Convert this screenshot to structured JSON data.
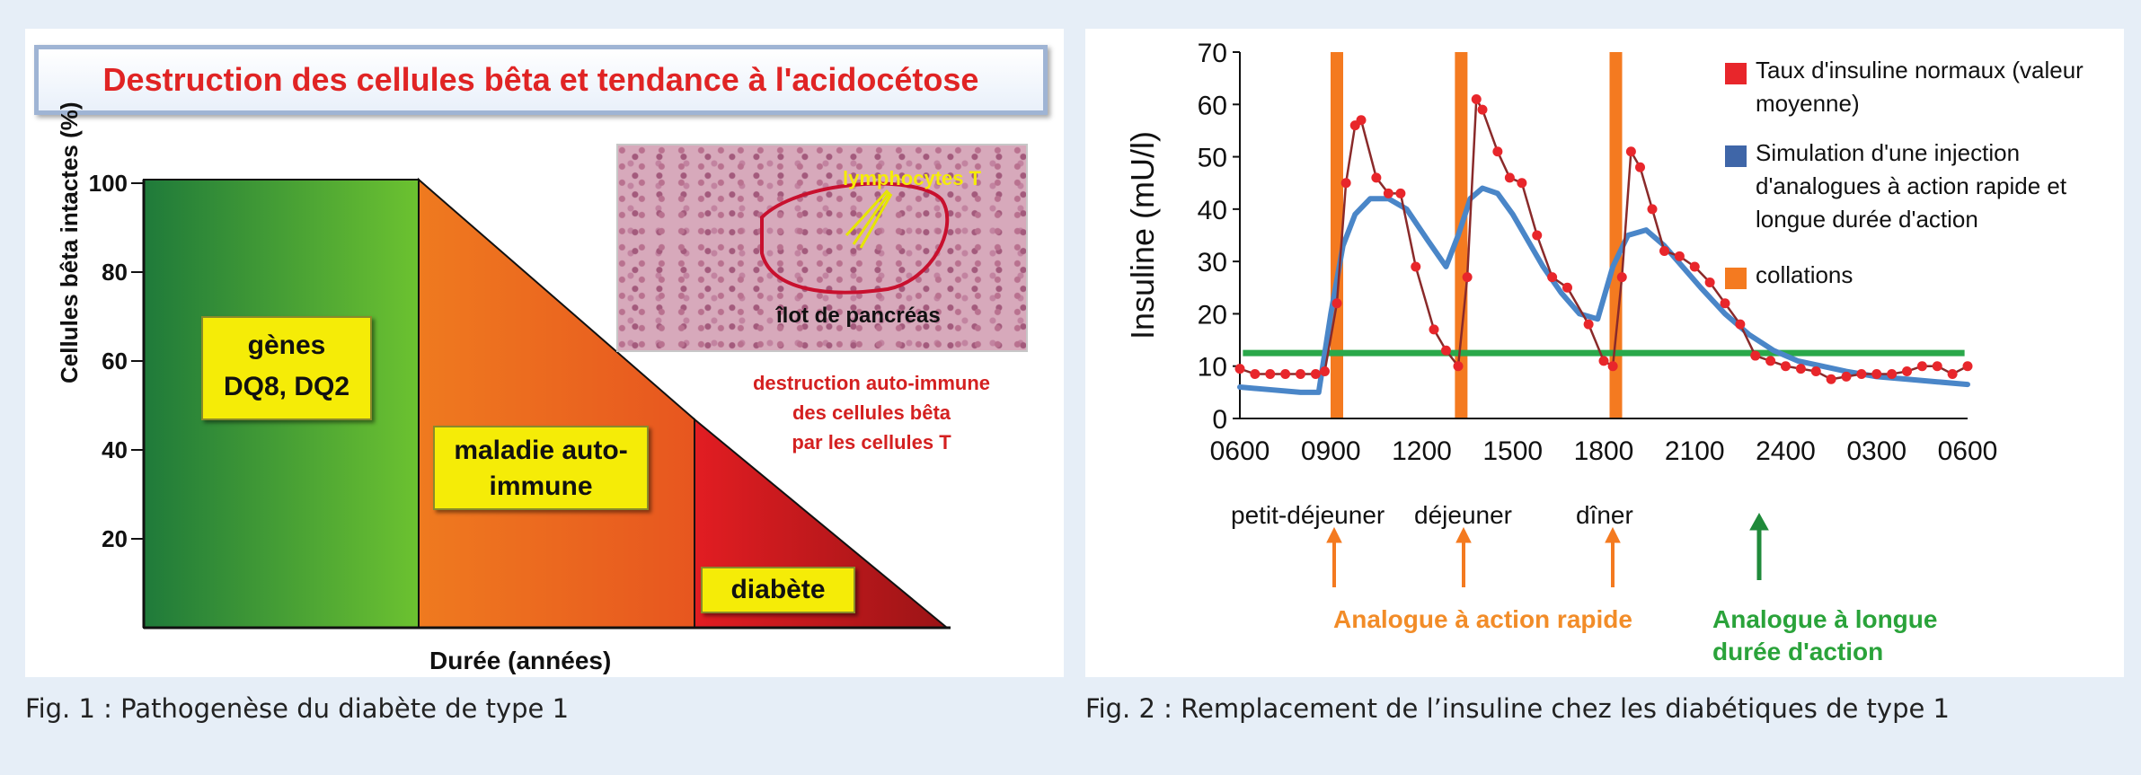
{
  "fig1": {
    "title": "Destruction des cellules bêta et tendance à l'acidocétose",
    "ylabel": "Cellules bêta intactes (%)",
    "yticks": [
      "100",
      "80",
      "60",
      "40",
      "20"
    ],
    "xlabel": "Durée (années)",
    "stage1_line1": "gènes",
    "stage1_line2": "DQ8, DQ2",
    "stage2_line1": "maladie auto-",
    "stage2_line2": "immune",
    "stage3": "diabète",
    "inset_label_lymph": "lymphocytes T",
    "inset_label_islet": "îlot de pancréas",
    "red_note_line1": "destruction auto-immune",
    "red_note_line2": "des cellules bêta",
    "red_note_line3": "par les cellules  T",
    "caption": "Fig. 1 : Pathogenèse du diabète de type 1"
  },
  "fig2": {
    "caption": "Fig. 2 : Remplacement de l’insuline chez les diabétiques de type 1",
    "meals": [
      "petit-déjeuner",
      "déjeuner",
      "dîner"
    ],
    "rapid_label": "Analogue à action rapide",
    "long_label_line1": "Analogue à longue",
    "long_label_line2": "durée d'action",
    "colors": {
      "normal": "#e8262b",
      "normal_line": "#8a2a2a",
      "simulation": "#4a86c8",
      "collation": "#f47a20",
      "basal": "#2aa84a",
      "rapid_text": "#f28c28",
      "long_text": "#2aa33a"
    }
  },
  "chart_data": [
    {
      "type": "area",
      "ylabel": "Cellules bêta intactes (%)",
      "xlabel": "Durée (années)",
      "ylim": [
        0,
        100
      ],
      "yticks": [
        20,
        40,
        60,
        80,
        100
      ],
      "series": [
        {
          "name": "gènes DQ8, DQ2",
          "x": [
            0,
            1
          ],
          "values": [
            100,
            100
          ]
        },
        {
          "name": "maladie auto-immune",
          "x": [
            1,
            2
          ],
          "values": [
            100,
            47
          ]
        },
        {
          "name": "diabète",
          "x": [
            2,
            2.9
          ],
          "values": [
            47,
            0
          ]
        }
      ]
    },
    {
      "type": "line",
      "ylabel": "Insuline (mU/l)",
      "ylim": [
        0,
        70
      ],
      "yticks": [
        0,
        10,
        20,
        30,
        40,
        50,
        60,
        70
      ],
      "x_tick_labels": [
        "0600",
        "0900",
        "1200",
        "1500",
        "1800",
        "2100",
        "2400",
        "0300",
        "0600"
      ],
      "x_range_hours": [
        0,
        24
      ],
      "legend": [
        "Taux d'insuline normaux (valeur moyenne)",
        "Simulation d'une injection d'analogues à action rapide et longue durée d'action",
        "collations"
      ],
      "legend_position": "top-right",
      "collations_hours": [
        3.2,
        7.3,
        12.4
      ],
      "basal_level": 12.5,
      "series": [
        {
          "name": "Taux d'insuline normaux (valeur moyenne)",
          "x": [
            0,
            0.5,
            1,
            1.5,
            2,
            2.5,
            2.8,
            3.2,
            3.5,
            3.8,
            4.0,
            4.5,
            4.9,
            5.3,
            5.8,
            6.4,
            6.8,
            7.2,
            7.5,
            7.8,
            8.0,
            8.5,
            8.9,
            9.3,
            9.8,
            10.3,
            10.8,
            11.5,
            12.0,
            12.3,
            12.6,
            12.9,
            13.2,
            13.6,
            14.0,
            14.5,
            15.0,
            15.5,
            16.0,
            16.5,
            17.0,
            17.5,
            18.0,
            18.5,
            19.0,
            19.5,
            20.0,
            20.5,
            21.0,
            21.5,
            22.0,
            22.5,
            23.0,
            23.5,
            24.0
          ],
          "values": [
            9.5,
            8.5,
            8.5,
            8.5,
            8.5,
            8.5,
            9,
            22,
            45,
            56,
            57,
            46,
            43,
            43,
            29,
            17,
            13,
            10,
            27,
            61,
            59,
            51,
            46,
            45,
            35,
            27,
            25,
            18,
            11,
            10,
            27,
            51,
            48,
            40,
            32,
            31,
            29,
            26,
            22,
            18,
            12,
            11,
            10,
            9.5,
            9,
            7.5,
            8,
            8.5,
            8.5,
            8.5,
            9,
            10,
            10,
            8.5,
            10
          ]
        },
        {
          "name": "Simulation d'une injection d'analogues à action rapide et longue durée d'action",
          "x": [
            0,
            1,
            2,
            2.6,
            3.0,
            3.4,
            3.8,
            4.3,
            4.9,
            5.5,
            6.2,
            6.8,
            7.2,
            7.6,
            8.0,
            8.5,
            9.0,
            9.5,
            10.0,
            10.6,
            11.2,
            11.8,
            12.3,
            12.8,
            13.4,
            14.0,
            14.6,
            15.2,
            16.0,
            16.8,
            17.6,
            18.4,
            19.2,
            20.0,
            21.0,
            22.0,
            23.0,
            24.0
          ],
          "values": [
            6,
            5.5,
            5,
            5,
            20,
            33,
            39,
            42,
            42,
            40,
            34,
            29,
            35,
            42,
            44,
            43,
            39,
            34,
            29,
            24,
            20,
            19,
            29,
            35,
            36,
            33,
            29,
            25,
            20,
            16,
            13,
            11,
            10,
            9,
            8,
            7.5,
            7,
            6.5
          ]
        }
      ]
    }
  ]
}
